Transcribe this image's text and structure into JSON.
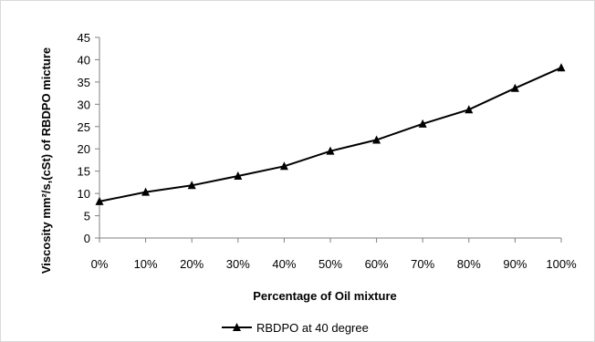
{
  "chart_data": {
    "type": "line",
    "title": "",
    "xlabel": "Percentage of Oil mixture",
    "ylabel": "Viscosity mm²/s,(cSt) of RBDPO micture",
    "categories": [
      "0%",
      "10%",
      "20%",
      "30%",
      "40%",
      "50%",
      "60%",
      "70%",
      "80%",
      "90%",
      "100%"
    ],
    "series": [
      {
        "name": "RBDPO at 40 degree",
        "values": [
          8.2,
          10.3,
          11.8,
          13.9,
          16.1,
          19.5,
          22.0,
          25.6,
          28.8,
          33.6,
          38.2
        ],
        "color": "#000000",
        "marker": "triangle"
      }
    ],
    "ylim": [
      0,
      45
    ],
    "yticks": [
      0,
      5,
      10,
      15,
      20,
      25,
      30,
      35,
      40,
      45
    ],
    "grid": false,
    "legend": "bottom"
  }
}
